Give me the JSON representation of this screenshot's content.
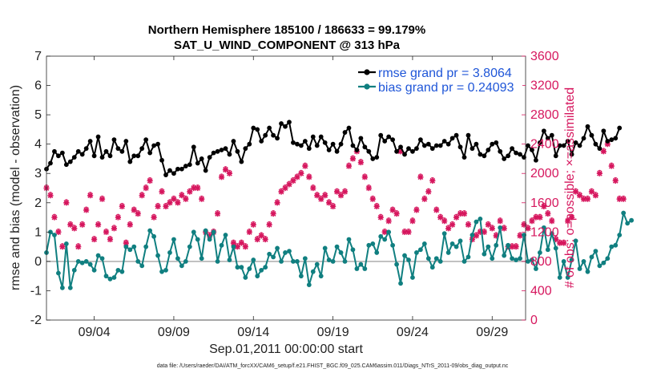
{
  "chart_data": {
    "type": "line",
    "title": "Northern Hemisphere 185100 / 186633 = 99.179%",
    "subtitle": "SAT_U_WIND_COMPONENT @ 313 hPa",
    "xlabel": "Sep.01,2011 00:00:00 start",
    "ylabel": "rmse and bias (model - observation)",
    "ylabel_right": "# of obs: o=possible; ×=assimilated",
    "footnote": "data file: /Users/raeder/DAI/ATM_forcXX/CAM6_setup/f.e21.FHIST_BGC.f09_025.CAM6assim.011/Diags_NTrS_2011-09/obs_diag_output.nc",
    "xlim": [
      1,
      31.1
    ],
    "ylim": [
      -2,
      7
    ],
    "ylim_right": [
      0,
      3600
    ],
    "x_ticks": [
      4,
      9,
      14,
      19,
      24,
      29
    ],
    "x_tick_labels": [
      "09/04",
      "09/09",
      "09/14",
      "09/19",
      "09/24",
      "09/29"
    ],
    "y_ticks": [
      -2,
      -1,
      0,
      1,
      2,
      3,
      4,
      5,
      6,
      7
    ],
    "y_tick_labels": [
      "-2",
      "-1",
      "0",
      "1",
      "2",
      "3",
      "4",
      "5",
      "6",
      "7"
    ],
    "y_ticks_right": [
      0,
      400,
      800,
      1200,
      1600,
      2000,
      2400,
      2800,
      3200,
      3600
    ],
    "y_tick_labels_right": [
      "0",
      "400",
      "800",
      "1200",
      "1600",
      "2000",
      "2400",
      "2800",
      "3200",
      "3600"
    ],
    "grid": false,
    "legend_position": "top-right",
    "time_step_days": 0.25,
    "series": [
      {
        "name": "rmse grand pr = 3.8064",
        "axis": "left",
        "color": "#000000",
        "marker": "circle",
        "values": [
          3.15,
          3.35,
          3.75,
          3.6,
          3.7,
          3.3,
          3.4,
          3.55,
          3.75,
          3.65,
          3.85,
          4.1,
          3.6,
          4.25,
          3.55,
          3.75,
          3.6,
          4.15,
          3.85,
          3.75,
          4.1,
          3.4,
          3.6,
          3.6,
          3.85,
          4.15,
          3.7,
          3.95,
          4.0,
          3.45,
          2.95,
          3.1,
          3.0,
          3.15,
          3.15,
          3.25,
          3.3,
          3.9,
          3.35,
          3.5,
          3.1,
          3.55,
          3.7,
          3.75,
          3.8,
          3.85,
          3.65,
          4.1,
          3.75,
          3.4,
          3.85,
          4.0,
          4.55,
          4.5,
          4.1,
          4.3,
          4.55,
          4.3,
          4.2,
          4.7,
          4.6,
          4.75,
          4.05,
          4.0,
          3.95,
          4.1,
          3.85,
          4.25,
          3.95,
          4.25,
          4.05,
          3.8,
          4.0,
          3.75,
          4.0,
          4.4,
          4.55,
          3.95,
          3.8,
          4.2,
          3.9,
          3.75,
          3.5,
          3.55,
          4.3,
          4.1,
          4.25,
          4.15,
          3.75,
          3.9,
          3.65,
          3.85,
          3.75,
          3.85,
          4.15,
          3.95,
          4.0,
          3.85,
          3.95,
          3.95,
          4.1,
          4.0,
          4.2,
          4.3,
          3.9,
          3.55,
          4.3,
          3.85,
          4.0,
          3.65,
          3.6,
          3.8,
          4.0,
          4.05,
          3.75,
          3.5,
          3.6,
          3.85,
          3.7,
          3.65,
          3.55,
          3.95,
          3.8,
          3.45,
          4.05,
          4.45,
          4.2,
          4.3,
          3.6,
          3.95,
          3.95,
          4.1,
          3.65,
          4.05,
          3.95,
          4.2,
          4.6,
          4.3,
          4.0,
          3.85,
          4.45,
          4.1,
          4.15,
          4.2,
          4.55
        ]
      },
      {
        "name": "bias grand pr = 0.24093",
        "axis": "left",
        "color": "#107f80",
        "marker": "circle",
        "values": [
          0.3,
          1.0,
          0.9,
          -0.4,
          -0.9,
          0.6,
          -0.9,
          -0.3,
          0.0,
          -0.05,
          0.0,
          -0.1,
          -0.3,
          0.2,
          0.1,
          -0.5,
          -0.6,
          -0.55,
          -0.3,
          -0.35,
          0.5,
          0.4,
          0.5,
          0.0,
          -0.15,
          0.5,
          1.05,
          0.85,
          0.2,
          -0.35,
          -0.3,
          0.3,
          0.75,
          0.1,
          -0.15,
          0.0,
          0.5,
          1.0,
          0.75,
          0.1,
          1.05,
          0.75,
          1.0,
          0.0,
          0.55,
          0.9,
          0.05,
          0.5,
          -0.2,
          -0.2,
          -0.55,
          -0.25,
          0.05,
          -0.5,
          -0.3,
          -0.2,
          0.25,
          0.15,
          0.45,
          0.0,
          0.3,
          0.35,
          0.0,
          0.0,
          -0.5,
          0.1,
          -0.8,
          -0.35,
          -0.1,
          -0.5,
          0.45,
          0.05,
          0.0,
          0.5,
          0.3,
          0.0,
          0.75,
          0.4,
          -0.25,
          -0.1,
          -0.25,
          0.55,
          0.6,
          0.3,
          0.85,
          0.75,
          1.0,
          0.55,
          -0.1,
          -0.75,
          0.2,
          0.05,
          -0.55,
          0.3,
          0.4,
          0.6,
          0.1,
          -0.2,
          0.1,
          0.0,
          0.95,
          0.3,
          0.6,
          0.5,
          0.7,
          0.0,
          0.15,
          0.9,
          1.35,
          1.45,
          0.25,
          0.5,
          0.1,
          0.55,
          1.15,
          0.2,
          0.55,
          0.1,
          0.05,
          0.1,
          0.9,
          0.0,
          0.05,
          -0.25,
          0.3,
          1.15,
          0.4,
          0.95,
          0.45,
          -0.55,
          0.0,
          -0.55,
          0.05,
          0.7,
          -0.25,
          0.0,
          -0.35,
          0.15,
          0.35,
          -0.15,
          -0.05,
          0.1,
          0.5,
          0.55,
          0.9,
          1.65,
          1.3,
          1.4
        ]
      },
      {
        "name": "assimilated",
        "axis": "right",
        "color": "#d6175e",
        "marker": "x",
        "values": [
          1800,
          1700,
          1400,
          1200,
          1000,
          1600,
          1300,
          1250,
          1000,
          1300,
          1500,
          1700,
          1100,
          1300,
          1650,
          1200,
          1100,
          1250,
          1400,
          1550,
          1050,
          1300,
          1500,
          1450,
          1700,
          1800,
          1900,
          1400,
          1550,
          1750,
          1550,
          1600,
          1650,
          1600,
          1700,
          1650,
          1750,
          1800,
          1800,
          1650,
          1200,
          1150,
          1200,
          1450,
          1950,
          2050,
          2000,
          1050,
          1000,
          1050,
          1000,
          1200,
          1300,
          1100,
          1150,
          1100,
          1300,
          1450,
          1600,
          1750,
          1800,
          1850,
          1900,
          1950,
          2000,
          2100,
          1950,
          1800,
          1700,
          1650,
          1700,
          1600,
          1550,
          1750,
          1700,
          1750,
          2100,
          2200,
          2300,
          2150,
          1950,
          1800,
          1650,
          1550,
          1400,
          1200,
          1350,
          1500,
          1450,
          2300,
          1200,
          1200,
          1350,
          1500,
          1950,
          1650,
          1750,
          1900,
          1500,
          1400,
          1350,
          1250,
          1300,
          1400,
          1450,
          1450,
          1300,
          1100,
          1150,
          1200,
          1200,
          1300,
          1250,
          1150,
          1350,
          1250,
          1000,
          1000,
          1000,
          1150,
          1300,
          1250,
          1350,
          1400,
          1400,
          1550,
          1450,
          1350,
          1100,
          1050,
          1050,
          1350,
          1400,
          1750,
          1700,
          1650,
          1650,
          1750,
          1700,
          2000,
          2300,
          2400,
          2100,
          1900,
          1650,
          1650
        ]
      },
      {
        "name": "possible",
        "axis": "right",
        "color": "#d6175e",
        "marker": "circle",
        "values": [
          1820,
          1720,
          1420,
          1220,
          1020,
          1620,
          1320,
          1270,
          1020,
          1320,
          1520,
          1720,
          1120,
          1320,
          1670,
          1220,
          1120,
          1270,
          1420,
          1570,
          1070,
          1320,
          1520,
          1470,
          1720,
          1820,
          1920,
          1420,
          1570,
          1770,
          1570,
          1620,
          1670,
          1620,
          1720,
          1670,
          1770,
          1820,
          1820,
          1670,
          1220,
          1170,
          1220,
          1470,
          1970,
          2070,
          2020,
          1070,
          1020,
          1070,
          1020,
          1220,
          1320,
          1120,
          1170,
          1120,
          1320,
          1470,
          1620,
          1770,
          1820,
          1870,
          1920,
          1970,
          2020,
          2120,
          1970,
          1820,
          1720,
          1670,
          1720,
          1620,
          1570,
          1770,
          1720,
          1770,
          2120,
          2220,
          2320,
          2170,
          1970,
          1820,
          1670,
          1570,
          1420,
          1220,
          1370,
          1520,
          1470,
          2320,
          1220,
          1220,
          1370,
          1520,
          1970,
          1670,
          1770,
          1920,
          1520,
          1420,
          1370,
          1270,
          1320,
          1420,
          1470,
          1470,
          1320,
          1120,
          1170,
          1220,
          1220,
          1320,
          1270,
          1170,
          1370,
          1270,
          1020,
          1020,
          1020,
          1170,
          1320,
          1270,
          1370,
          1420,
          1420,
          1570,
          1470,
          1370,
          1120,
          1070,
          1070,
          1370,
          1420,
          1770,
          1720,
          1670,
          1670,
          1770,
          1720,
          2020,
          2320,
          2420,
          2120,
          1920,
          1670,
          1670
        ]
      }
    ],
    "zero_line_color": "#b3b3b3"
  }
}
